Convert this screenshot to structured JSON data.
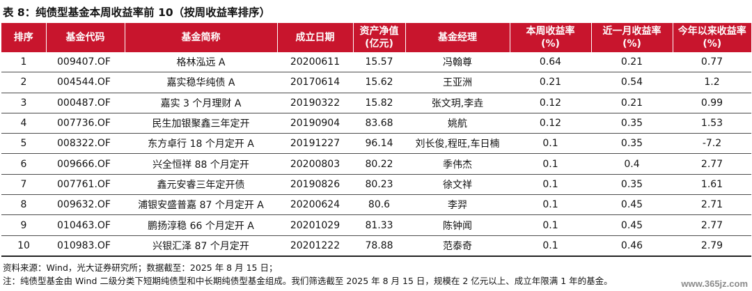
{
  "title": "表 8：纯债型基金本周收益率前 10（按周收益率排序）",
  "table": {
    "headers": [
      [
        "排序"
      ],
      [
        "基金代码"
      ],
      [
        "基金简称"
      ],
      [
        "成立日期"
      ],
      [
        "资产净值",
        "(亿元)"
      ],
      [
        "基金经理"
      ],
      [
        "本周收益率",
        "(%)"
      ],
      [
        "近一月收益率",
        "(%)"
      ],
      [
        "今年以来收益率",
        "(%)"
      ]
    ],
    "rows": [
      [
        "1",
        "009407.OF",
        "格林泓远 A",
        "20200611",
        "15.57",
        "冯翰尊",
        "0.64",
        "0.21",
        "0.77"
      ],
      [
        "2",
        "004544.OF",
        "嘉实稳华纯债 A",
        "20170614",
        "15.62",
        "王亚洲",
        "0.21",
        "0.54",
        "1.2"
      ],
      [
        "3",
        "000487.OF",
        "嘉实 3 个月理财 A",
        "20190322",
        "15.82",
        "张文玥,李垚",
        "0.12",
        "0.21",
        "0.99"
      ],
      [
        "4",
        "007736.OF",
        "民生加银聚鑫三年定开",
        "20190904",
        "83.68",
        "姚航",
        "0.12",
        "0.35",
        "1.53"
      ],
      [
        "5",
        "008322.OF",
        "东方卓行 18 个月定开 A",
        "20191227",
        "96.14",
        "刘长俊,程旺,车日楠",
        "0.1",
        "0.35",
        "-7.2"
      ],
      [
        "6",
        "009666.OF",
        "兴全恒祥 88 个月定开",
        "20200803",
        "80.22",
        "季伟杰",
        "0.1",
        "0.4",
        "2.77"
      ],
      [
        "7",
        "007761.OF",
        "鑫元安睿三年定开债",
        "20190826",
        "80.23",
        "徐文祥",
        "0.1",
        "0.35",
        "1.61"
      ],
      [
        "8",
        "009632.OF",
        "浦银安盛普嘉 87 个月定开 A",
        "20200624",
        "80.6",
        "李羿",
        "0.1",
        "0.45",
        "2.71"
      ],
      [
        "9",
        "010463.OF",
        "鹏扬淳稳 66 个月定开 A",
        "20201029",
        "81.33",
        "陈钟闻",
        "0.1",
        "0.45",
        "2.77"
      ],
      [
        "10",
        "010983.OF",
        "兴银汇泽 87 个月定开",
        "20201222",
        "78.88",
        "范泰奇",
        "0.1",
        "0.46",
        "2.79"
      ]
    ]
  },
  "notes": {
    "source": "资料来源：Wind，光大证券研究所；数据截至：2025 年 8 月 15 日；",
    "note": "注：纯债型基金由 Wind 二级分类下短期纯债型和中长期纯债型基金组成。我们筛选截至 2025 年 8 月 15 日，规模在 2 亿元以上、成立年限满 1 年的基金。"
  },
  "watermark": "www.365jz.com",
  "colors": {
    "header_bg": "#c8152d",
    "header_text": "#ffffff"
  }
}
